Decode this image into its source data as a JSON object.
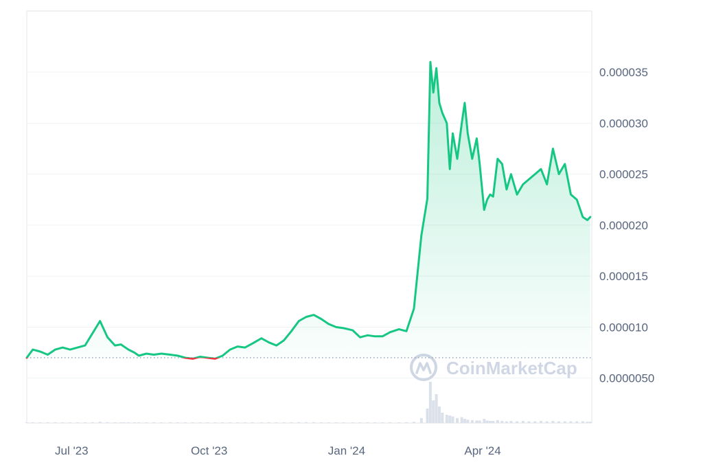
{
  "chart_data": {
    "type": "area",
    "x_ticks": [
      "Jul '23",
      "Oct '23",
      "Jan '24",
      "Apr '24"
    ],
    "y_ticks": [
      {
        "value": 5e-06,
        "label": "0.0000050"
      },
      {
        "value": 1e-05,
        "label": "0.000010"
      },
      {
        "value": 1.5e-05,
        "label": "0.000015"
      },
      {
        "value": 2e-05,
        "label": "0.000020"
      },
      {
        "value": 2.5e-05,
        "label": "0.000025"
      },
      {
        "value": 3e-05,
        "label": "0.000030"
      },
      {
        "value": 3.5e-05,
        "label": "0.000035"
      }
    ],
    "ylim": [
      6e-07,
      4.1e-05
    ],
    "reference_value": 7e-06,
    "grid": true,
    "colors": {
      "up": "#16c784",
      "down": "#ea3943",
      "reference": "#8f9bb3",
      "grid": "#eff2f5"
    },
    "watermark": "CoinMarketCap",
    "series": [
      {
        "x": [
          "2023-06-01",
          "2023-06-05",
          "2023-06-10",
          "2023-06-15",
          "2023-06-20",
          "2023-06-25",
          "2023-06-30",
          "2023-07-05",
          "2023-07-10",
          "2023-07-15",
          "2023-07-20",
          "2023-07-25",
          "2023-07-30",
          "2023-08-03",
          "2023-08-05",
          "2023-08-08",
          "2023-08-12",
          "2023-08-15",
          "2023-08-20",
          "2023-08-25",
          "2023-08-30",
          "2023-09-05",
          "2023-09-10",
          "2023-09-15",
          "2023-09-20",
          "2023-09-25",
          "2023-09-30",
          "2023-10-05",
          "2023-10-10",
          "2023-10-15",
          "2023-10-20",
          "2023-10-25",
          "2023-10-30",
          "2023-11-05",
          "2023-11-10",
          "2023-11-15",
          "2023-11-20",
          "2023-11-25",
          "2023-11-30",
          "2023-12-05",
          "2023-12-10",
          "2023-12-15",
          "2023-12-20",
          "2023-12-25",
          "2023-12-30",
          "2024-01-05",
          "2024-01-10",
          "2024-01-15",
          "2024-01-20",
          "2024-01-25",
          "2024-01-30",
          "2024-02-05",
          "2024-02-10",
          "2024-02-15",
          "2024-02-20",
          "2024-02-24",
          "2024-02-26",
          "2024-02-28",
          "2024-03-01",
          "2024-03-03",
          "2024-03-05",
          "2024-03-08",
          "2024-03-10",
          "2024-03-12",
          "2024-03-15",
          "2024-03-18",
          "2024-03-20",
          "2024-03-22",
          "2024-03-25",
          "2024-03-28",
          "2024-03-30",
          "2024-04-02",
          "2024-04-04",
          "2024-04-06",
          "2024-04-08",
          "2024-04-11",
          "2024-04-14",
          "2024-04-17",
          "2024-04-20",
          "2024-04-24",
          "2024-04-28",
          "2024-05-02",
          "2024-05-06",
          "2024-05-10",
          "2024-05-14",
          "2024-05-18",
          "2024-05-22",
          "2024-05-26",
          "2024-05-30",
          "2024-06-03",
          "2024-06-07",
          "2024-06-10",
          "2024-06-12"
        ],
        "y": [
          7e-06,
          7.8e-06,
          7.6e-06,
          7.3e-06,
          7.8e-06,
          8e-06,
          7.8e-06,
          8e-06,
          8.2e-06,
          9.4e-06,
          1.06e-05,
          9e-06,
          8.2e-06,
          8.3e-06,
          8.1e-06,
          7.8e-06,
          7.5e-06,
          7.2e-06,
          7.4e-06,
          7.3e-06,
          7.4e-06,
          7.3e-06,
          7.2e-06,
          7e-06,
          6.9e-06,
          7.1e-06,
          7e-06,
          6.9e-06,
          7.2e-06,
          7.8e-06,
          8.1e-06,
          8e-06,
          8.4e-06,
          8.9e-06,
          8.5e-06,
          8.2e-06,
          8.7e-06,
          9.6e-06,
          1.06e-05,
          1.1e-05,
          1.12e-05,
          1.08e-05,
          1.03e-05,
          1e-05,
          9.9e-06,
          9.7e-06,
          9e-06,
          9.2e-06,
          9.1e-06,
          9.1e-06,
          9.5e-06,
          9.8e-06,
          9.6e-06,
          1.18e-05,
          1.9e-05,
          2.26e-05,
          3.6e-05,
          3.3e-05,
          3.54e-05,
          3.2e-05,
          3.1e-05,
          3e-05,
          2.55e-05,
          2.9e-05,
          2.65e-05,
          3e-05,
          3.2e-05,
          2.9e-05,
          2.65e-05,
          2.85e-05,
          2.6e-05,
          2.15e-05,
          2.25e-05,
          2.3e-05,
          2.28e-05,
          2.65e-05,
          2.6e-05,
          2.35e-05,
          2.5e-05,
          2.3e-05,
          2.4e-05,
          2.45e-05,
          2.5e-05,
          2.55e-05,
          2.4e-05,
          2.75e-05,
          2.5e-05,
          2.6e-05,
          2.3e-05,
          2.25e-05,
          2.08e-05,
          2.05e-05,
          2.08e-05
        ]
      }
    ],
    "volume": [
      0.01,
      0.01,
      0.01,
      0.01,
      0.01,
      0.01,
      0.01,
      0.01,
      0.01,
      0.02,
      0.03,
      0.02,
      0.01,
      0.01,
      0.01,
      0.01,
      0.01,
      0.01,
      0.01,
      0.01,
      0.01,
      0.01,
      0.01,
      0.01,
      0.01,
      0.01,
      0.01,
      0.01,
      0.01,
      0.01,
      0.01,
      0.01,
      0.01,
      0.01,
      0.01,
      0.01,
      0.01,
      0.01,
      0.02,
      0.02,
      0.02,
      0.01,
      0.01,
      0.01,
      0.01,
      0.01,
      0.01,
      0.01,
      0.01,
      0.01,
      0.01,
      0.01,
      0.01,
      0.03,
      0.12,
      0.35,
      1.0,
      0.55,
      0.7,
      0.4,
      0.25,
      0.2,
      0.18,
      0.16,
      0.12,
      0.14,
      0.1,
      0.08,
      0.07,
      0.06,
      0.06,
      0.1,
      0.06,
      0.05,
      0.05,
      0.07,
      0.05,
      0.04,
      0.05,
      0.04,
      0.05,
      0.04,
      0.04,
      0.05,
      0.04,
      0.05,
      0.04,
      0.04,
      0.04,
      0.04,
      0.04,
      0.03,
      0.03
    ]
  }
}
